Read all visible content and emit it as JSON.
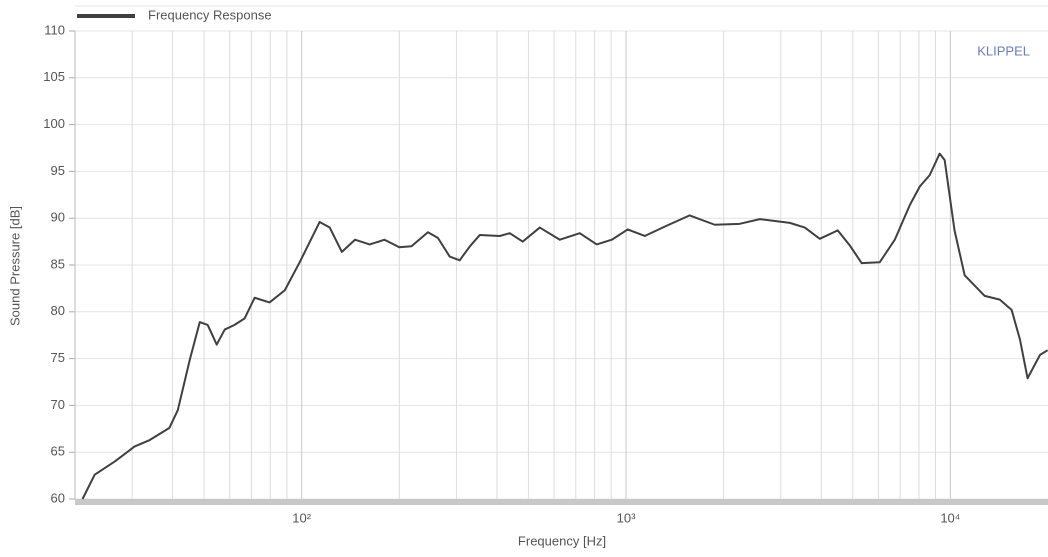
{
  "chart_data": {
    "type": "line",
    "legend_label": "Frequency Response",
    "watermark": "KLIPPEL",
    "x_label": "Frequency  [Hz]",
    "y_label": "Sound Pressure  [dB]",
    "xscale": "log",
    "xlim": [
      20,
      20000
    ],
    "ylim": [
      60,
      110
    ],
    "xticks": [
      {
        "value": 100,
        "label": "10²"
      },
      {
        "value": 1000,
        "label": "10³"
      },
      {
        "value": 10000,
        "label": "10⁴"
      }
    ],
    "xminorticks": [
      20,
      30,
      40,
      50,
      60,
      70,
      80,
      90,
      200,
      300,
      400,
      500,
      600,
      700,
      800,
      900,
      2000,
      3000,
      4000,
      5000,
      6000,
      7000,
      8000,
      9000
    ],
    "yticks": [
      60,
      65,
      70,
      75,
      80,
      85,
      90,
      95,
      100,
      105,
      110
    ],
    "grid": true,
    "series": [
      {
        "name": "Frequency Response",
        "color": "#404040",
        "x": [
          21.1,
          23.0,
          26.5,
          30.5,
          34.0,
          39.1,
          41.5,
          45.2,
          48.5,
          51.3,
          54.7,
          57.9,
          62.1,
          66.7,
          71.6,
          79.6,
          88.7,
          98.6,
          113.6,
          122,
          133,
          146,
          162,
          180,
          200,
          218,
          245,
          263,
          286,
          307,
          330,
          354,
          408,
          438,
          480,
          542,
          625,
          720,
          812,
          904,
          1012,
          1142,
          1316,
          1571,
          1877,
          2242,
          2585,
          3199,
          3559,
          3957,
          4495,
          4894,
          5329,
          6058,
          6740,
          7497,
          8053,
          8636,
          9268,
          9604,
          10300,
          11070,
          12760,
          14200,
          15450,
          16400,
          17300,
          18900,
          19950
        ],
        "values": [
          60.0,
          62.6,
          64.0,
          65.6,
          66.3,
          67.6,
          69.5,
          74.9,
          78.9,
          78.6,
          76.5,
          78.1,
          78.6,
          79.3,
          81.5,
          81.0,
          82.3,
          85.3,
          89.6,
          89.0,
          86.4,
          87.7,
          87.2,
          87.7,
          86.9,
          87.0,
          88.5,
          87.9,
          85.9,
          85.5,
          87.0,
          88.2,
          88.1,
          88.4,
          87.5,
          89.0,
          87.7,
          88.4,
          87.2,
          87.7,
          88.8,
          88.1,
          89.1,
          90.3,
          89.3,
          89.4,
          89.9,
          89.5,
          89.0,
          87.8,
          88.7,
          87.1,
          85.2,
          85.3,
          87.7,
          91.4,
          93.4,
          94.6,
          96.9,
          96.2,
          88.7,
          83.9,
          81.7,
          81.3,
          80.2,
          77.0,
          72.9,
          75.4,
          75.9
        ]
      }
    ]
  }
}
